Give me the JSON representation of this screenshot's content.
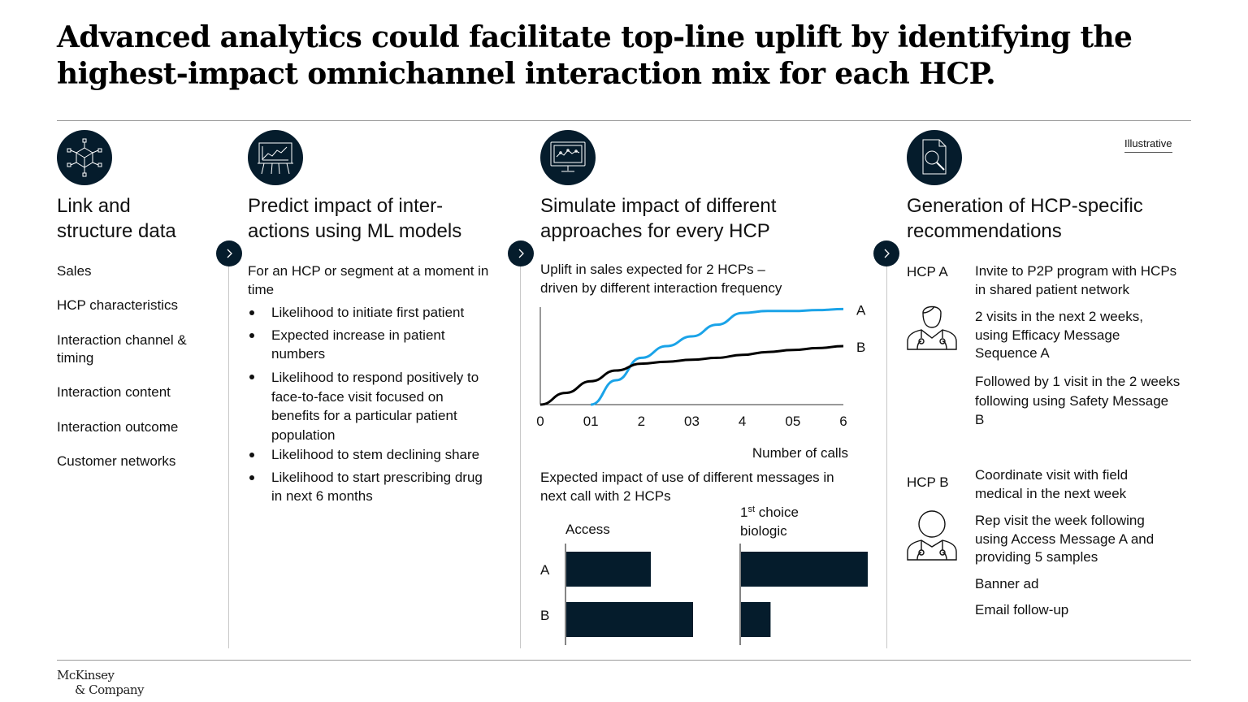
{
  "title": {
    "line1": "Advanced analytics could facilitate top-line uplift by identifying the",
    "line2": "highest-impact omnichannel interaction mix for each HCP."
  },
  "illustrative": "Illustrative",
  "columns": [
    {
      "icon": "data-network-icon",
      "title_lines": [
        "Link and",
        "structure data"
      ]
    },
    {
      "icon": "presentation-chart-icon",
      "title_lines": [
        "Predict impact of inter-",
        "actions using ML models"
      ]
    },
    {
      "icon": "monitor-chart-icon",
      "title_lines": [
        "Simulate impact of different",
        "approaches for every HCP"
      ]
    },
    {
      "icon": "document-search-icon",
      "title_lines": [
        "Generation of HCP-specific",
        "recommendations"
      ]
    }
  ],
  "col1": {
    "items": [
      [
        "Sales"
      ],
      [
        "HCP characteristics"
      ],
      [
        "Interaction channel &",
        "timing"
      ],
      [
        "Interaction content"
      ],
      [
        "Interaction outcome"
      ],
      [
        "Customer networks"
      ]
    ]
  },
  "col2": {
    "intro": [
      "For an HCP or segment at a moment in",
      "time"
    ],
    "bullets": [
      [
        "Likelihood to initiate first patient"
      ],
      [
        "Expected increase in patient",
        "numbers"
      ],
      [
        "Likelihood to respond positively to",
        "face-to-face visit focused on",
        "benefits for a particular patient",
        "population"
      ],
      [
        "Likelihood to stem declining share"
      ],
      [
        "Likelihood to start prescribing drug",
        "in next 6 months"
      ]
    ]
  },
  "col3": {
    "line_chart_title": [
      "Uplift in sales expected for 2 HCPs –",
      "driven by different interaction frequency"
    ],
    "bar_chart_title": [
      "Expected impact of use of different messages in",
      "next call with 2 HCPs"
    ]
  },
  "chart_data": [
    {
      "type": "line",
      "title": "Uplift in sales expected for 2 HCPs – driven by different interaction frequency",
      "xlabel": "Number of calls",
      "ylabel": "",
      "x_ticks": [
        "0",
        "01",
        "2",
        "03",
        "4",
        "05",
        "6"
      ],
      "x": [
        0,
        0.5,
        1,
        1.5,
        2,
        2.5,
        3,
        3.5,
        4,
        4.5,
        5,
        5.5,
        6
      ],
      "xlim": [
        0,
        6
      ],
      "ylim": [
        0,
        100
      ],
      "series": [
        {
          "name": "A",
          "color": "#1aa3e8",
          "values": [
            null,
            null,
            0,
            25,
            48,
            60,
            70,
            82,
            94,
            96,
            96,
            97,
            98
          ]
        },
        {
          "name": "B",
          "color": "#000000",
          "values": [
            0,
            12,
            24,
            35,
            42,
            44,
            46,
            48,
            51,
            54,
            56,
            58,
            60
          ]
        }
      ],
      "grid": false,
      "y_axis_ticks": false
    },
    {
      "type": "bar",
      "orientation": "horizontal",
      "title": "Expected impact of use of different messages in next call with 2 HCPs",
      "categories": [
        "A",
        "B"
      ],
      "panels": [
        {
          "label": "Access",
          "values": [
            2.0,
            3.0
          ]
        },
        {
          "label": "1st choice biologic",
          "label_line1_base": "1",
          "label_line1_sup": "st",
          "label_line1_rest": " choice",
          "label_line2": "biologic",
          "values": [
            3.0,
            0.7
          ]
        }
      ],
      "xlim": [
        0,
        3.0
      ],
      "color": "#051c2c"
    }
  ],
  "col4": {
    "hcp_a": {
      "label": "HCP A",
      "recs": [
        [
          "Invite to P2P program with HCPs",
          "in shared patient network"
        ],
        [
          "2 visits in the next 2 weeks,",
          "using Efficacy Message",
          "Sequence A"
        ],
        [
          "Followed by 1 visit in the 2 weeks",
          "following using Safety Message",
          "B"
        ]
      ]
    },
    "hcp_b": {
      "label": "HCP B",
      "recs": [
        [
          "Coordinate visit with field",
          "medical in the next week"
        ],
        [
          "Rep visit the week following",
          "using Access Message A and",
          "providing 5 samples"
        ],
        [
          "Banner ad"
        ],
        [
          "Email follow-up"
        ]
      ]
    }
  },
  "logo": {
    "line1": "McKinsey",
    "line2": "& Company"
  },
  "colors": {
    "navy": "#051c2c",
    "cyan": "#1aa3e8",
    "rule": "#9a9a9a"
  }
}
